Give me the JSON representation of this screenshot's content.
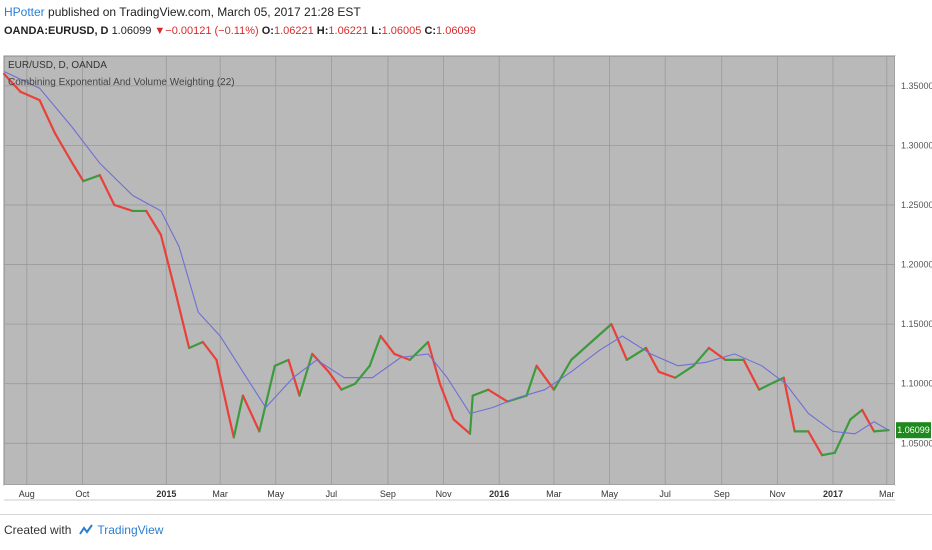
{
  "header": {
    "author": "HPotter",
    "published_text": "published on TradingView.com, March 05, 2017 21:28 EST",
    "symbol": "OANDA:EURUSD, D",
    "last": "1.06099",
    "change": "−0.00121 (−0.11%)",
    "open_label": "O:",
    "open": "1.06221",
    "high_label": "H:",
    "high": "1.06221",
    "low_label": "L:",
    "low": "1.06005",
    "close_label": "C:",
    "close": "1.06099"
  },
  "footer": {
    "created_with": "Created with",
    "brand": "TradingView"
  },
  "colors": {
    "up": "#3d9a3d",
    "down": "#e8413a",
    "ma": "#6f6fd6",
    "background": "#b9b9b9",
    "last_price_bg": "#1e8a1e"
  },
  "chart_data": {
    "type": "line",
    "title": "EUR/USD, D, OANDA",
    "indicator": "Combining Exponential And Volume Weighting (22)",
    "price_label": "1.06099",
    "y_ticks": [
      "1.35000",
      "1.30000",
      "1.25000",
      "1.20000",
      "1.15000",
      "1.10000",
      "1.05000"
    ],
    "y_tick_values": [
      1.35,
      1.3,
      1.25,
      1.2,
      1.15,
      1.1,
      1.05
    ],
    "ylim": [
      1.015,
      1.375
    ],
    "x_ticks": [
      "Aug",
      "Oct",
      "2015",
      "Mar",
      "May",
      "Jul",
      "Sep",
      "Nov",
      "2016",
      "Mar",
      "May",
      "Jul",
      "Sep",
      "Nov",
      "2017",
      "Mar"
    ],
    "x_tick_dates": [
      "2014-08-01",
      "2014-10-01",
      "2015-01-01",
      "2015-03-01",
      "2015-05-01",
      "2015-07-01",
      "2015-09-01",
      "2015-11-01",
      "2016-01-01",
      "2016-03-01",
      "2016-05-01",
      "2016-07-01",
      "2016-09-01",
      "2016-11-01",
      "2017-01-01",
      "2017-03-01"
    ],
    "xlim": [
      "2014-07-07",
      "2017-03-10"
    ],
    "grid": true,
    "series": [
      {
        "name": "EUR/USD",
        "x": [
          "2014-07-07",
          "2014-07-25",
          "2014-08-15",
          "2014-09-01",
          "2014-09-20",
          "2014-10-02",
          "2014-10-20",
          "2014-11-05",
          "2014-11-25",
          "2014-12-10",
          "2014-12-26",
          "2015-01-10",
          "2015-01-26",
          "2015-02-10",
          "2015-02-25",
          "2015-03-10",
          "2015-03-16",
          "2015-03-26",
          "2015-04-13",
          "2015-04-30",
          "2015-05-15",
          "2015-05-27",
          "2015-06-10",
          "2015-06-28",
          "2015-07-12",
          "2015-07-27",
          "2015-08-12",
          "2015-08-24",
          "2015-09-08",
          "2015-09-25",
          "2015-10-15",
          "2015-10-28",
          "2015-11-12",
          "2015-11-30",
          "2015-12-03",
          "2015-12-20",
          "2016-01-10",
          "2016-01-31",
          "2016-02-11",
          "2016-03-01",
          "2016-03-20",
          "2016-04-11",
          "2016-05-03",
          "2016-05-20",
          "2016-06-10",
          "2016-06-24",
          "2016-07-12",
          "2016-08-01",
          "2016-08-18",
          "2016-09-05",
          "2016-09-25",
          "2016-10-12",
          "2016-10-25",
          "2016-11-08",
          "2016-11-20",
          "2016-12-05",
          "2016-12-20",
          "2017-01-03",
          "2017-01-20",
          "2017-02-02",
          "2017-02-15",
          "2017-03-03"
        ],
        "values": [
          1.36,
          1.345,
          1.338,
          1.31,
          1.285,
          1.27,
          1.275,
          1.25,
          1.245,
          1.245,
          1.225,
          1.18,
          1.13,
          1.135,
          1.12,
          1.075,
          1.055,
          1.09,
          1.06,
          1.115,
          1.12,
          1.09,
          1.125,
          1.11,
          1.095,
          1.1,
          1.115,
          1.14,
          1.125,
          1.12,
          1.135,
          1.1,
          1.07,
          1.058,
          1.09,
          1.095,
          1.085,
          1.09,
          1.115,
          1.095,
          1.12,
          1.135,
          1.15,
          1.12,
          1.13,
          1.11,
          1.105,
          1.115,
          1.13,
          1.12,
          1.12,
          1.095,
          1.1,
          1.105,
          1.06,
          1.06,
          1.04,
          1.042,
          1.07,
          1.078,
          1.06,
          1.061
        ]
      },
      {
        "name": "Combining Exponential And Volume Weighting (22)",
        "x": [
          "2014-07-07",
          "2014-08-15",
          "2014-09-20",
          "2014-10-20",
          "2014-11-25",
          "2014-12-26",
          "2015-01-15",
          "2015-02-05",
          "2015-03-01",
          "2015-03-26",
          "2015-04-20",
          "2015-05-20",
          "2015-06-15",
          "2015-07-15",
          "2015-08-15",
          "2015-09-15",
          "2015-10-15",
          "2015-11-05",
          "2015-11-30",
          "2015-12-25",
          "2016-01-20",
          "2016-02-20",
          "2016-03-20",
          "2016-04-20",
          "2016-05-15",
          "2016-06-15",
          "2016-07-15",
          "2016-08-15",
          "2016-09-15",
          "2016-10-15",
          "2016-11-10",
          "2016-12-05",
          "2017-01-01",
          "2017-01-25",
          "2017-02-15",
          "2017-03-03"
        ],
        "values": [
          1.362,
          1.348,
          1.315,
          1.285,
          1.258,
          1.245,
          1.215,
          1.16,
          1.14,
          1.11,
          1.08,
          1.105,
          1.12,
          1.105,
          1.105,
          1.122,
          1.125,
          1.105,
          1.075,
          1.08,
          1.088,
          1.095,
          1.11,
          1.128,
          1.14,
          1.125,
          1.115,
          1.118,
          1.125,
          1.115,
          1.1,
          1.075,
          1.06,
          1.058,
          1.068,
          1.061
        ]
      }
    ]
  }
}
